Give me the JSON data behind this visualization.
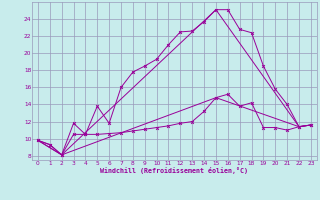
{
  "xlabel": "Windchill (Refroidissement éolien,°C)",
  "xlim": [
    -0.5,
    23.5
  ],
  "ylim": [
    7.5,
    26.0
  ],
  "yticks": [
    8,
    10,
    12,
    14,
    16,
    18,
    20,
    22,
    24
  ],
  "xticks": [
    0,
    1,
    2,
    3,
    4,
    5,
    6,
    7,
    8,
    9,
    10,
    11,
    12,
    13,
    14,
    15,
    16,
    17,
    18,
    19,
    20,
    21,
    22,
    23
  ],
  "bg_color": "#c8ecec",
  "grid_color": "#9999bb",
  "line_color": "#990099",
  "line1_x": [
    0,
    1,
    2,
    3,
    4,
    5,
    6,
    7,
    8,
    9,
    10,
    11,
    12,
    13,
    14,
    15,
    16,
    17,
    18,
    19,
    20,
    21,
    22,
    23
  ],
  "line1_y": [
    9.8,
    9.3,
    8.1,
    11.8,
    10.5,
    13.8,
    11.8,
    16.0,
    17.8,
    18.5,
    19.3,
    21.0,
    22.5,
    22.6,
    23.7,
    25.1,
    25.1,
    22.8,
    22.4,
    18.5,
    15.8,
    14.0,
    11.4,
    11.6
  ],
  "line2_x": [
    0,
    1,
    2,
    3,
    4,
    5,
    6,
    7,
    8,
    9,
    10,
    11,
    12,
    13,
    14,
    15,
    16,
    17,
    18,
    19,
    20,
    21,
    22,
    23
  ],
  "line2_y": [
    9.8,
    9.3,
    8.1,
    10.5,
    10.5,
    10.5,
    10.6,
    10.7,
    10.9,
    11.1,
    11.3,
    11.5,
    11.8,
    12.0,
    13.2,
    14.8,
    15.2,
    13.8,
    14.2,
    11.3,
    11.3,
    11.0,
    11.4,
    11.6
  ],
  "line3_x": [
    0,
    2,
    15,
    22,
    23
  ],
  "line3_y": [
    9.8,
    8.1,
    25.1,
    11.4,
    11.6
  ],
  "line4_x": [
    0,
    2,
    15,
    22,
    23
  ],
  "line4_y": [
    9.8,
    8.1,
    14.8,
    11.4,
    11.6
  ]
}
